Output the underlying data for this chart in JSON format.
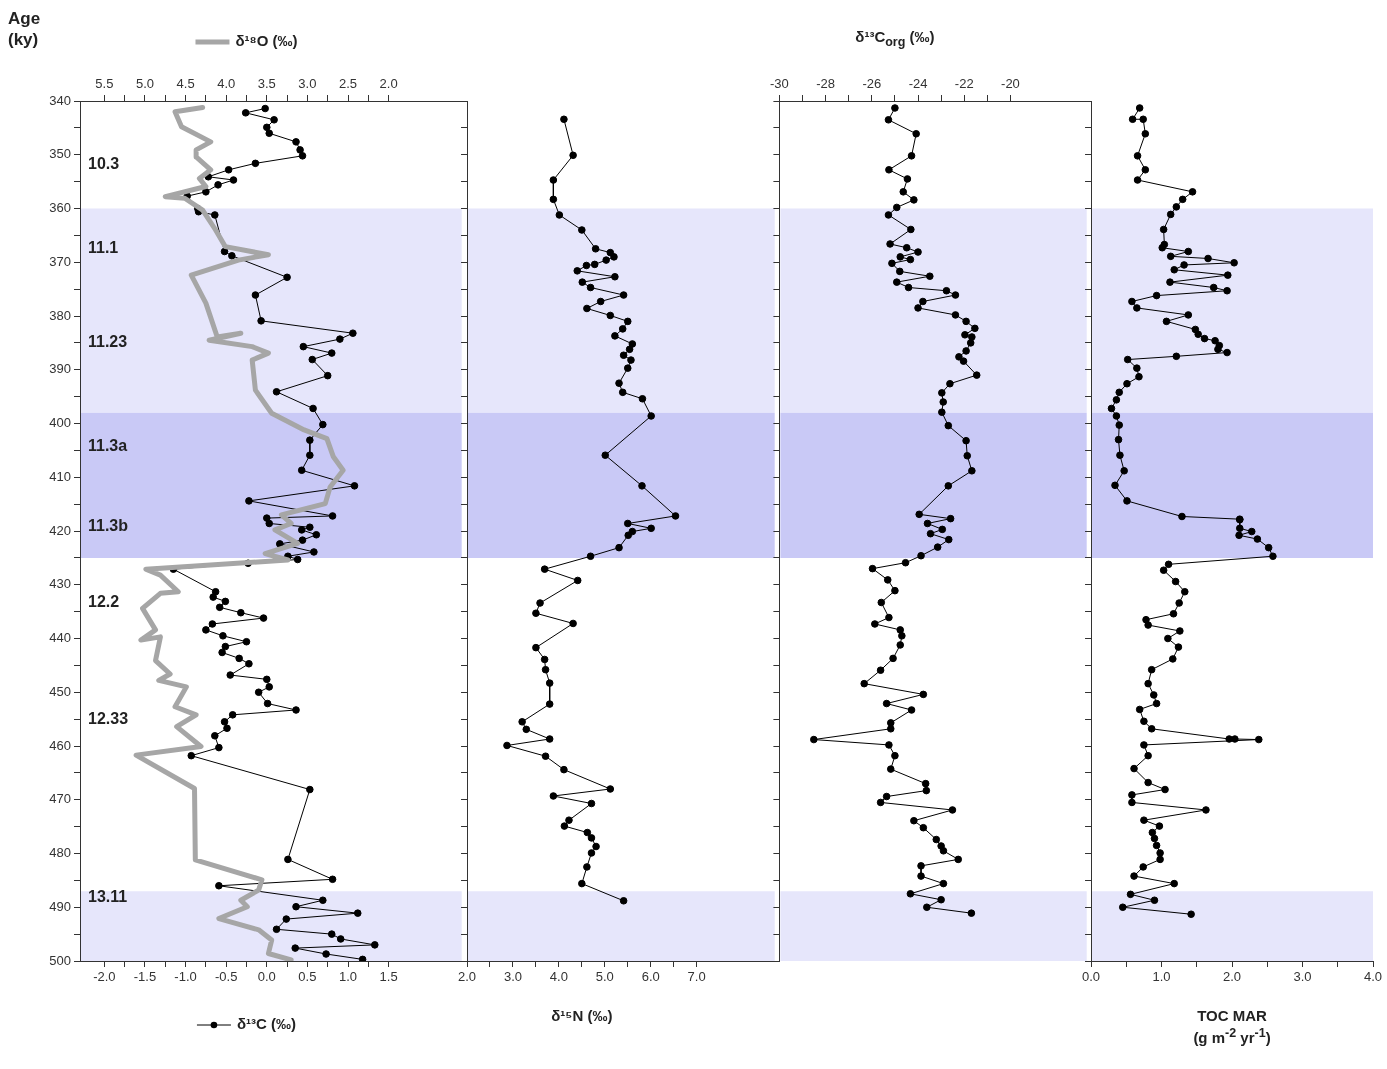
{
  "chart_data": [
    {
      "type": "line",
      "ylabel": "Age (ky)",
      "xlim": [
        -2.3,
        2.4
      ],
      "x2lim": [
        5.8,
        1.1
      ],
      "ylim": [
        500,
        340
      ],
      "marker": "circle",
      "legend": "bottom left",
      "xticks": [
        {
          "value": -2,
          "label": "-2.0"
        },
        {
          "value": -1.75,
          "label": null
        },
        -1.5,
        {
          "value": -1.25,
          "label": null
        },
        {
          "value": -1,
          "label": "-1.0"
        },
        {
          "value": -0.75,
          "label": null
        },
        -0.5,
        {
          "value": -0.25,
          "label": null
        },
        {
          "value": 0,
          "label": "0.0"
        },
        {
          "value": 0.25,
          "label": null
        },
        0.5,
        {
          "value": 0.75,
          "label": null
        },
        {
          "value": 1,
          "label": "1.0"
        },
        {
          "value": 1.25,
          "label": null
        },
        1.5
      ],
      "x2ticks": [
        5.5,
        {
          "value": 5.25,
          "label": null
        },
        {
          "value": 5,
          "label": "5.0"
        },
        {
          "value": 4.75,
          "label": null
        },
        4.5,
        {
          "value": 4.25,
          "label": null
        },
        {
          "value": 4,
          "label": "4.0"
        },
        {
          "value": 3.75,
          "label": null
        },
        3.5,
        {
          "value": 3.25,
          "label": null
        },
        {
          "value": 3,
          "label": "3.0"
        },
        {
          "value": 2.75,
          "label": null
        },
        2.5,
        {
          "value": 2.25,
          "label": null
        },
        {
          "value": 2,
          "label": "2.0"
        }
      ],
      "yticks": [
        340,
        {
          "value": 345,
          "label": null
        },
        350,
        {
          "value": 355,
          "label": null
        },
        360,
        {
          "value": 365,
          "label": null
        },
        370,
        {
          "value": 375,
          "label": null
        },
        380,
        {
          "value": 385,
          "label": null
        },
        390,
        {
          "value": 395,
          "label": null
        },
        400,
        {
          "value": 405,
          "label": null
        },
        410,
        {
          "value": 415,
          "label": null
        },
        420,
        {
          "value": 425,
          "label": null
        },
        430,
        {
          "value": 435,
          "label": null
        },
        440,
        {
          "value": 445,
          "label": null
        },
        450,
        {
          "value": 455,
          "label": null
        },
        460,
        {
          "value": 465,
          "label": null
        },
        470,
        {
          "value": 475,
          "label": null
        },
        480,
        {
          "value": 485,
          "label": null
        },
        490,
        {
          "value": 495,
          "label": null
        },
        500
      ],
      "bands": [
        {
          "axis": "y",
          "from": 360,
          "to": 398,
          "color": "#e6e6fb"
        },
        {
          "axis": "y",
          "from": 398,
          "to": 425,
          "color": "#c9c9f6"
        },
        {
          "axis": "y",
          "from": 487,
          "to": 500,
          "color": "#e6e6fb"
        }
      ],
      "annotations": [
        "10.3",
        "11.1",
        "11.23",
        "11.3a",
        "11.3b",
        "12.2",
        "12.33",
        "13.11"
      ],
      "series": [
        {
          "name": "δ¹⁸O (‰)",
          "color": "#a6a6a6",
          "axis": "x2",
          "marker": "none",
          "x": [
            4.29,
            4.63,
            4.55,
            4.19,
            4.37,
            4.37,
            4.19,
            4.33,
            4.25,
            4.75,
            4.51,
            4.29,
            4.13,
            4.01,
            3.48,
            3.85,
            4.43,
            4.25,
            4.11,
            3.82,
            4.21,
            3.68,
            3.48,
            3.68,
            3.64,
            3.44,
            3.04,
            2.76,
            2.68,
            2.56,
            2.72,
            2.78,
            3.32,
            3.2,
            3.4,
            3.12,
            3.52,
            3.24,
            4.99,
            4.81,
            4.59,
            4.81,
            5.03,
            4.87,
            5.05,
            4.81,
            4.87,
            4.69,
            4.83,
            4.49,
            4.63,
            4.37,
            4.61,
            4.31,
            5.11,
            4.39,
            4.38,
            3.56,
            3.6,
            3.82,
            3.74,
            4.09,
            3.6,
            3.44,
            3.48,
            3.2
          ],
          "values": [
            341.2,
            342,
            344.8,
            347.6,
            349.1,
            350.4,
            352.8,
            354.4,
            355.9,
            357.8,
            358.1,
            360.3,
            364,
            367.1,
            368.6,
            369.6,
            372.4,
            377.6,
            383.9,
            383.2,
            384.5,
            385.7,
            386.9,
            388.2,
            393.8,
            398.1,
            401.2,
            402.8,
            406.2,
            408.7,
            411.8,
            414.9,
            417,
            418.6,
            419.8,
            422.3,
            424.2,
            425.4,
            427.1,
            428.2,
            431.3,
            431.6,
            434.4,
            438.4,
            440.3,
            439.7,
            444.1,
            446.6,
            447.8,
            449,
            452.7,
            454.2,
            456.4,
            460.1,
            461.7,
            467.9,
            481.2,
            484.9,
            486.8,
            488.7,
            489.9,
            492.1,
            494.2,
            496.1,
            498.6,
            499.8
          ]
        },
        {
          "name": "δ¹³C (‰)",
          "color": "#000000",
          "x": [
            -0.02,
            -0.26,
            0.09,
            0,
            0.03,
            0.36,
            0.41,
            0.44,
            -0.14,
            -0.47,
            -0.72,
            -0.41,
            -0.6,
            -0.75,
            -0.98,
            -0.85,
            -0.84,
            -0.64,
            -0.52,
            -0.43,
            0.25,
            -0.14,
            -0.07,
            1.06,
            0.9,
            0.45,
            0.8,
            0.56,
            0.75,
            0.12,
            0.57,
            0.69,
            0.53,
            0.53,
            0.43,
            1.08,
            -0.22,
            0.81,
            0,
            0.03,
            0.53,
            0.43,
            0.61,
            0.44,
            0.16,
            0.58,
            0.26,
            0.38,
            -0.23,
            -1.15,
            -0.63,
            -0.66,
            -0.51,
            -0.58,
            -0.32,
            -0.04,
            -0.67,
            -0.75,
            -0.54,
            -0.25,
            -0.51,
            -0.55,
            -0.34,
            -0.22,
            -0.45,
            0,
            0.03,
            -0.1,
            0.01,
            0.36,
            -0.42,
            -0.52,
            -0.49,
            -0.64,
            -0.59,
            -0.93,
            0.53,
            0.26,
            0.81,
            -0.59,
            0.69,
            0.36,
            1.12,
            0.24,
            0.12,
            0.8,
            0.91,
            1.33,
            0.35,
            0.73,
            1.18
          ],
          "values": [
            341.4,
            342.2,
            343.5,
            344.9,
            346,
            347.6,
            349.1,
            350.2,
            351.6,
            352.8,
            354.1,
            354.7,
            355.6,
            356.9,
            357.7,
            360,
            360.6,
            361.2,
            368,
            368.8,
            372.8,
            376.1,
            380.9,
            383.2,
            384.3,
            385.7,
            386.9,
            388.1,
            391.1,
            394.1,
            397.2,
            400.2,
            403.1,
            405.9,
            408.7,
            411.6,
            414.4,
            417.2,
            417.6,
            418.6,
            419.3,
            419.8,
            420.7,
            421.7,
            422.4,
            423.9,
            424.7,
            425.3,
            426,
            427.1,
            431.3,
            432.3,
            433.1,
            434.2,
            435.2,
            436.2,
            437.3,
            438.4,
            439.5,
            440.6,
            441.5,
            442.6,
            443.7,
            444.7,
            446.8,
            447.6,
            449,
            450,
            452.1,
            453.3,
            454.2,
            455.5,
            456.7,
            458.1,
            460.3,
            461.8,
            468.1,
            481.1,
            484.8,
            486,
            488.7,
            489.9,
            491.1,
            492.2,
            494.1,
            495,
            495.9,
            497,
            497.6,
            498.7,
            499.7
          ]
        }
      ]
    },
    {
      "type": "line",
      "xlabel": "δ¹⁵N (‰)",
      "xlim": [
        2,
        8.7
      ],
      "ylim": [
        500,
        340
      ],
      "marker": "circle",
      "tick_labels": "x",
      "xticks": [
        {
          "value": 2,
          "label": "2.0"
        },
        {
          "value": 2.5,
          "label": null
        },
        {
          "value": 3,
          "label": "3.0"
        },
        {
          "value": 3.5,
          "label": null
        },
        {
          "value": 4,
          "label": "4.0"
        },
        {
          "value": 4.5,
          "label": null
        },
        {
          "value": 5,
          "label": "5.0"
        },
        {
          "value": 5.5,
          "label": null
        },
        {
          "value": 6,
          "label": "6.0"
        },
        {
          "value": 6.5,
          "label": null
        },
        {
          "value": 7,
          "label": "7.0"
        }
      ],
      "yticks": [
        340,
        345,
        350,
        355,
        360,
        365,
        370,
        375,
        380,
        385,
        390,
        395,
        400,
        405,
        410,
        415,
        420,
        425,
        430,
        435,
        440,
        445,
        450,
        455,
        460,
        465,
        470,
        475,
        480,
        485,
        490,
        495,
        500
      ],
      "bands": [
        {
          "axis": "y",
          "from": 360,
          "to": 398,
          "color": "#e6e6fb"
        },
        {
          "axis": "y",
          "from": 398,
          "to": 425,
          "color": "#c9c9f6"
        },
        {
          "axis": "y",
          "from": 487,
          "to": 500,
          "color": "#e6e6fb"
        }
      ],
      "series": [
        {
          "color": "#000000",
          "x": [
            4.11,
            4.31,
            3.88,
            3.88,
            4.01,
            4.5,
            4.8,
            5.12,
            5.2,
            5.03,
            4.78,
            4.6,
            4.4,
            5.22,
            4.51,
            4.69,
            5.41,
            4.91,
            4.61,
            5.12,
            5.5,
            5.39,
            5.22,
            5.6,
            5.54,
            5.41,
            5.57,
            5.5,
            5.31,
            5.39,
            5.82,
            6.01,
            5.01,
            5.81,
            6.54,
            5.5,
            6.01,
            5.6,
            5.51,
            5.31,
            4.69,
            3.69,
            4.41,
            3.59,
            3.5,
            4.31,
            3.5,
            3.69,
            3.71,
            3.8,
            3.8,
            3.2,
            3.29,
            3.8,
            2.87,
            3.71,
            4.11,
            5.12,
            3.88,
            4.71,
            4.22,
            4.12,
            4.62,
            4.71,
            4.81,
            4.71,
            4.61,
            4.5,
            5.41
          ],
          "values": [
            343.4,
            350.1,
            354.7,
            358.3,
            361.2,
            364,
            367.5,
            368.2,
            369,
            369.6,
            370.4,
            370.6,
            371.6,
            372.7,
            373.7,
            374.7,
            376.1,
            377.3,
            378.6,
            379.9,
            381,
            382.4,
            383.7,
            385.2,
            386.2,
            387.3,
            388.2,
            389.7,
            392.5,
            394.2,
            395.4,
            398.6,
            405.9,
            411.6,
            417.2,
            418.6,
            419.5,
            420.1,
            420.8,
            423.1,
            424.7,
            427.1,
            429.2,
            433.4,
            435.3,
            437.2,
            441.7,
            443.9,
            445.8,
            448.3,
            452.2,
            455.5,
            456.9,
            458.7,
            459.9,
            461.9,
            464.4,
            468,
            469.3,
            470.7,
            473.8,
            474.9,
            476.1,
            477.1,
            478.7,
            479.9,
            482.5,
            485.6,
            488.8
          ]
        }
      ]
    },
    {
      "type": "line",
      "xlabel": "δ¹³C$_{org}$ (‰)",
      "xlim": [
        -30,
        -16.7
      ],
      "ylim": [
        500,
        340
      ],
      "marker": "circle",
      "tick_labels": "x",
      "xticks": [
        -30,
        {
          "value": -29,
          "label": null
        },
        -28,
        {
          "value": -27,
          "label": null
        },
        -26,
        {
          "value": -25,
          "label": null
        },
        -24,
        {
          "value": -23,
          "label": null
        },
        -22,
        {
          "value": -21,
          "label": null
        },
        -20
      ],
      "yticks": [
        340,
        345,
        350,
        355,
        360,
        365,
        370,
        375,
        380,
        385,
        390,
        395,
        400,
        405,
        410,
        415,
        420,
        425,
        430,
        435,
        440,
        445,
        450,
        455,
        460,
        465,
        470,
        475,
        480,
        485,
        490,
        495,
        500
      ],
      "bands": [
        {
          "axis": "y",
          "from": 360,
          "to": 398,
          "color": "#e6e6fb"
        },
        {
          "axis": "y",
          "from": 398,
          "to": 425,
          "color": "#c9c9f6"
        },
        {
          "axis": "y",
          "from": 487,
          "to": 500,
          "color": "#e6e6fb"
        }
      ],
      "series": [
        {
          "color": "#000000",
          "x": [
            -25,
            -25.28,
            -24.08,
            -24.28,
            -25.26,
            -24.46,
            -24.64,
            -24.18,
            -24.92,
            -25.28,
            -24.31,
            -25.21,
            -24.49,
            -24,
            -24.77,
            -24.33,
            -25.13,
            -24.79,
            -23.49,
            -24.92,
            -24.41,
            -22.77,
            -22.38,
            -23.79,
            -24,
            -22.38,
            -21.92,
            -21.54,
            -21.97,
            -21.67,
            -21.72,
            -21.92,
            -22.23,
            -22.03,
            -21.46,
            -22.62,
            -22.97,
            -22.91,
            -22.97,
            -22.69,
            -21.92,
            -21.87,
            -21.67,
            -22.69,
            -23.95,
            -22.59,
            -23.59,
            -22.95,
            -23.46,
            -22.67,
            -23.15,
            -23.87,
            -24.54,
            -25.97,
            -25.31,
            -25,
            -25.59,
            -25.26,
            -25.87,
            -24.77,
            -24.7,
            -24.77,
            -25.08,
            -25.62,
            -26.33,
            -23.77,
            -25.36,
            -24.28,
            -25.18,
            -25.18,
            -28.51,
            -25.26,
            -25,
            -25.18,
            -23.67,
            -23.64,
            -25.36,
            -25.62,
            -22.51,
            -24.18,
            -23.77,
            -23.21,
            -23,
            -22.9,
            -22.26,
            -23.87,
            -23.87,
            -22.9,
            -24.33,
            -23,
            -23.62,
            -21.69
          ],
          "values": [
            341.3,
            343.5,
            346.1,
            350.2,
            352.8,
            354.5,
            356.9,
            358.4,
            359.8,
            361.2,
            363.9,
            366.6,
            367.3,
            368.1,
            369,
            369.5,
            370.2,
            371.7,
            372.6,
            373.7,
            374.7,
            375.3,
            376.1,
            377.3,
            378.5,
            379.8,
            381,
            382.3,
            383.5,
            383.9,
            385,
            386.5,
            387.6,
            388.4,
            391,
            392.6,
            394.3,
            396,
            397.9,
            400.4,
            403.2,
            406,
            408.8,
            411.6,
            416.9,
            417.7,
            418.6,
            419.7,
            420.5,
            421.6,
            423,
            424.6,
            425.9,
            427,
            429.1,
            431.1,
            433.3,
            436.1,
            437.3,
            438.4,
            439.5,
            441.2,
            443.7,
            445.9,
            448.4,
            450.4,
            452.1,
            453.3,
            455.7,
            456.8,
            458.8,
            459.8,
            461.8,
            464.3,
            467,
            468.3,
            469.4,
            470.5,
            471.9,
            473.9,
            475.2,
            477.4,
            478.6,
            479.5,
            481.1,
            482.3,
            484.2,
            485.6,
            487.5,
            488.6,
            490,
            491.1
          ]
        }
      ]
    },
    {
      "type": "line",
      "xlabel": "TOC MAR (g m$^{-2}$ yr$^{-1}$)",
      "xlim": [
        0,
        4
      ],
      "ylim": [
        500,
        340
      ],
      "marker": "circle",
      "tick_labels": "x",
      "xticks": [
        {
          "value": 0,
          "label": "0.0"
        },
        {
          "value": 0.5,
          "label": null
        },
        {
          "value": 1,
          "label": "1.0"
        },
        {
          "value": 1.5,
          "label": null
        },
        {
          "value": 2,
          "label": "2.0"
        },
        {
          "value": 2.5,
          "label": null
        },
        {
          "value": 3,
          "label": "3.0"
        },
        {
          "value": 3.5,
          "label": null
        },
        {
          "value": 4,
          "label": "4.0"
        }
      ],
      "yticks": [
        340,
        345,
        350,
        355,
        360,
        365,
        370,
        375,
        380,
        385,
        390,
        395,
        400,
        405,
        410,
        415,
        420,
        425,
        430,
        435,
        440,
        445,
        450,
        455,
        460,
        465,
        470,
        475,
        480,
        485,
        490,
        495,
        500
      ],
      "bands": [
        {
          "axis": "y",
          "from": 360,
          "to": 398,
          "color": "#e6e6fb"
        },
        {
          "axis": "y",
          "from": 398,
          "to": 425,
          "color": "#c9c9f6"
        },
        {
          "axis": "y",
          "from": 487,
          "to": 500,
          "color": "#e6e6fb"
        }
      ],
      "series": [
        {
          "color": "#000000",
          "x": [
            0.69,
            0.59,
            0.74,
            0.77,
            0.66,
            0.77,
            0.66,
            1.44,
            1.3,
            1.21,
            1.13,
            1.03,
            1.04,
            1.01,
            1.38,
            1.13,
            1.66,
            2.03,
            1.32,
            1.18,
            1.94,
            1.12,
            1.74,
            1.93,
            0.93,
            0.58,
            0.65,
            1.38,
            1.07,
            1.48,
            1.52,
            1.61,
            1.76,
            1.82,
            1.8,
            1.93,
            1.21,
            0.52,
            0.65,
            0.68,
            0.51,
            0.4,
            0.36,
            0.29,
            0.36,
            0.4,
            0.39,
            0.41,
            0.47,
            0.34,
            0.51,
            1.29,
            2.11,
            2.11,
            2.11,
            2.28,
            2.1,
            2.36,
            2.52,
            2.58,
            1.1,
            1.03,
            1.2,
            1.33,
            1.25,
            1.17,
            0.78,
            0.81,
            1.26,
            1.09,
            1.24,
            1.16,
            0.86,
            0.81,
            0.89,
            0.93,
            0.69,
            0.75,
            0.86,
            1.96,
            2.04,
            2.38,
            0.75,
            0.81,
            0.61,
            0.81,
            1.05,
            0.58,
            0.58,
            1.63,
            0.75,
            0.97,
            0.87,
            0.9,
            0.93,
            0.98,
            0.98,
            0.74,
            0.61,
            1.18,
            0.56,
            0.9,
            0.45,
            1.42
          ],
          "values": [
            341.3,
            343.4,
            343.4,
            346.1,
            350.2,
            352.8,
            354.7,
            356.9,
            358.3,
            359.7,
            361.1,
            363.9,
            366.7,
            367.3,
            368,
            368.9,
            369.3,
            370.1,
            370.5,
            371.4,
            372.4,
            373.7,
            374.7,
            375.3,
            376.2,
            377.3,
            378.5,
            379.8,
            381,
            382.5,
            383.4,
            384.2,
            384.6,
            385.5,
            386.2,
            386.8,
            387.5,
            388.1,
            389.7,
            391.3,
            392.6,
            394.2,
            395.6,
            397.2,
            398.6,
            400.3,
            403,
            405.9,
            408.8,
            411.5,
            414.4,
            417.3,
            417.8,
            417.9,
            419.5,
            420.1,
            420.8,
            421.5,
            423.1,
            424.7,
            426.2,
            427.3,
            429.4,
            431.3,
            433.4,
            435.4,
            436.5,
            437.5,
            438.6,
            440,
            441.6,
            443.8,
            445.8,
            448.4,
            450.5,
            452.1,
            453.2,
            455.4,
            456.8,
            458.7,
            458.7,
            458.8,
            459.8,
            461.8,
            464.2,
            466.8,
            468.1,
            469.1,
            470.5,
            471.9,
            473.8,
            474.9,
            476.1,
            477.2,
            478.5,
            479.9,
            481.1,
            482.5,
            484.2,
            485.6,
            487.6,
            488.7,
            490,
            491.3
          ]
        }
      ]
    }
  ]
}
